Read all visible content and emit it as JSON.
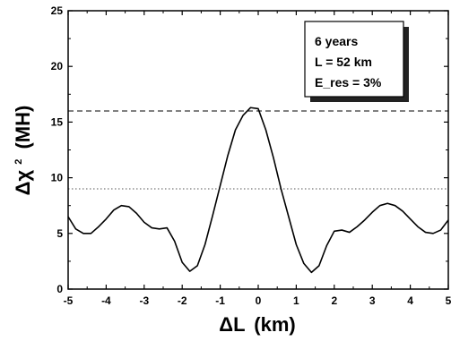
{
  "chart_data": {
    "type": "line",
    "xlabel_symbol": "ΔL",
    "xlabel_unit": "(km)",
    "ylabel_symbol": "Δχ",
    "ylabel_sup": "2",
    "ylabel_unit": "(MH)",
    "xlim": [
      -5,
      5
    ],
    "ylim": [
      0,
      25
    ],
    "xticks": [
      -5,
      -4,
      -3,
      -2,
      -1,
      0,
      1,
      2,
      3,
      4,
      5
    ],
    "yticks": [
      0,
      5,
      10,
      15,
      20,
      25
    ],
    "xtick_labels": [
      "-5",
      "-4",
      "-3",
      "-2",
      "-1",
      "0",
      "1",
      "2",
      "3",
      "4",
      "5"
    ],
    "ytick_labels": [
      "0",
      "5",
      "10",
      "15",
      "20",
      "25"
    ],
    "annotation_lines": [
      {
        "y": 16,
        "style": "dashed",
        "color": "#000000"
      },
      {
        "y": 9,
        "style": "dotted",
        "color": "#555555"
      }
    ],
    "legend_box": {
      "position": "top-right",
      "lines": [
        "6 years",
        "L = 52 km",
        "E_res = 3%"
      ]
    },
    "series": [
      {
        "color": "#000000",
        "x": [
          -5.0,
          -4.8,
          -4.6,
          -4.4,
          -4.2,
          -4.0,
          -3.8,
          -3.6,
          -3.4,
          -3.2,
          -3.0,
          -2.8,
          -2.6,
          -2.4,
          -2.2,
          -2.0,
          -1.8,
          -1.6,
          -1.4,
          -1.2,
          -1.0,
          -0.8,
          -0.6,
          -0.4,
          -0.2,
          0.0,
          0.2,
          0.4,
          0.6,
          0.8,
          1.0,
          1.2,
          1.4,
          1.6,
          1.8,
          2.0,
          2.2,
          2.4,
          2.6,
          2.8,
          3.0,
          3.2,
          3.4,
          3.6,
          3.8,
          4.0,
          4.2,
          4.4,
          4.6,
          4.8,
          5.0
        ],
        "y": [
          6.5,
          5.4,
          5.0,
          5.0,
          5.6,
          6.3,
          7.1,
          7.5,
          7.4,
          6.8,
          6.0,
          5.5,
          5.4,
          5.5,
          4.3,
          2.4,
          1.6,
          2.1,
          4.0,
          6.6,
          9.3,
          12.0,
          14.3,
          15.6,
          16.3,
          16.2,
          14.3,
          11.8,
          9.0,
          6.5,
          4.0,
          2.3,
          1.5,
          2.1,
          3.9,
          5.2,
          5.3,
          5.1,
          5.6,
          6.2,
          6.9,
          7.5,
          7.7,
          7.5,
          7.0,
          6.3,
          5.6,
          5.1,
          5.0,
          5.3,
          6.2
        ]
      }
    ]
  }
}
